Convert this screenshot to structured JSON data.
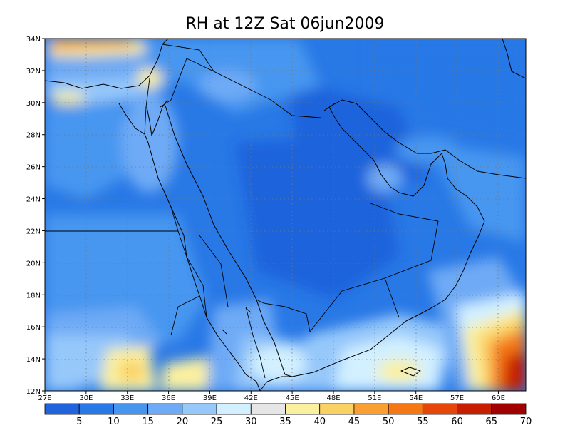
{
  "title": "RH at 12Z Sat 06jun2009",
  "lat_ticks": [
    {
      "value": 12,
      "label": "12N"
    },
    {
      "value": 14,
      "label": "14N"
    },
    {
      "value": 16,
      "label": "16N"
    },
    {
      "value": 18,
      "label": "18N"
    },
    {
      "value": 20,
      "label": "20N"
    },
    {
      "value": 22,
      "label": "22N"
    },
    {
      "value": 24,
      "label": "24N"
    },
    {
      "value": 26,
      "label": "26N"
    },
    {
      "value": 28,
      "label": "28N"
    },
    {
      "value": 30,
      "label": "30N"
    },
    {
      "value": 32,
      "label": "32N"
    },
    {
      "value": 34,
      "label": "34N"
    }
  ],
  "lon_ticks": [
    {
      "value": 27,
      "label": "27E"
    },
    {
      "value": 30,
      "label": "30E"
    },
    {
      "value": 33,
      "label": "33E"
    },
    {
      "value": 36,
      "label": "36E"
    },
    {
      "value": 39,
      "label": "39E"
    },
    {
      "value": 42,
      "label": "42E"
    },
    {
      "value": 45,
      "label": "45E"
    },
    {
      "value": 48,
      "label": "48E"
    },
    {
      "value": 51,
      "label": "51E"
    },
    {
      "value": 54,
      "label": "54E"
    },
    {
      "value": 57,
      "label": "57E"
    },
    {
      "value": 60,
      "label": "60E"
    }
  ],
  "lon_range": [
    27,
    62
  ],
  "lat_range": [
    12,
    34
  ],
  "colorbar": {
    "colors": [
      "#1f64dc",
      "#2878e6",
      "#4696f0",
      "#6eaaf5",
      "#96c8fa",
      "#d2f0ff",
      "#e6e6e6",
      "#faf0a0",
      "#fad264",
      "#faa032",
      "#f57814",
      "#e6460a",
      "#c81e00",
      "#a00000"
    ],
    "labels": [
      "5",
      "10",
      "15",
      "20",
      "25",
      "30",
      "35",
      "40",
      "45",
      "50",
      "55",
      "60",
      "65",
      "70"
    ]
  }
}
